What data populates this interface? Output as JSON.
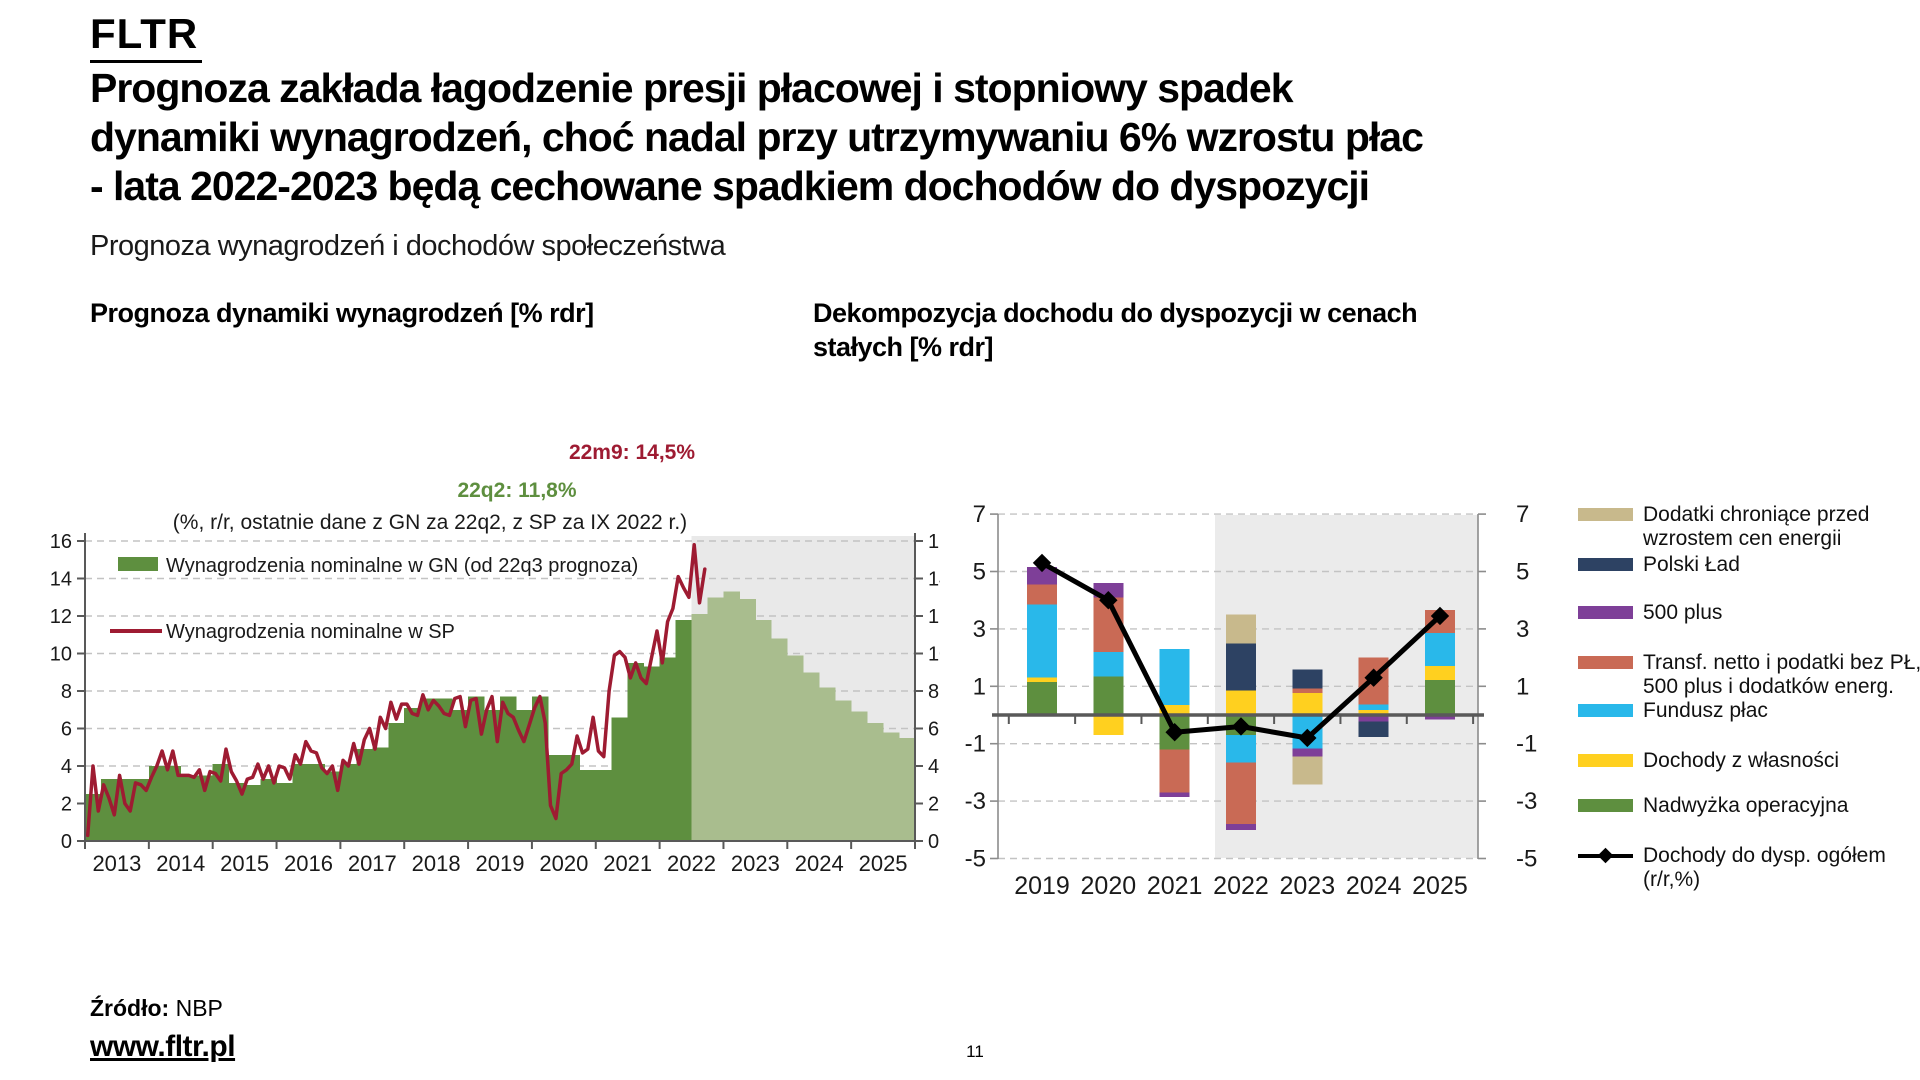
{
  "page": {
    "logo": "FLTR",
    "heading_lines": [
      "Prognoza zakłada łagodzenie presji płacowej i stopniowy spadek",
      "dynamiki wynagrodzeń, choć nadal przy utrzymywaniu 6% wzrostu płac",
      "- lata 2022-2023 będą cechowane spadkiem dochodów do dyspozycji"
    ],
    "subtitle": "Prognoza wynagrodzeń i dochodów społeczeństwa",
    "source_label": "Źródło:",
    "source_value": "NBP",
    "website": "www.fltr.pl",
    "page_number": "11"
  },
  "chart_data": [
    {
      "id": "wages-forecast",
      "type": "bar",
      "title": "Prognoza dynamiki wynagrodzeń [% rdr]",
      "annotation": "(%, r/r, ostatnie dane z GN za 22q2, z SP za IX 2022 r.)",
      "legend": [
        {
          "label": "Wynagrodzenia nominalne w GN (od 22q3 prognoza)",
          "type": "box",
          "color": "#5e8f3f"
        },
        {
          "label": "Wynagrodzenia nominalne w SP",
          "type": "line",
          "color": "#9e1b32"
        }
      ],
      "callouts": [
        {
          "text": "22q2: 11,8%",
          "color": "#5e8f3f"
        },
        {
          "text": "22m9: 14,5%",
          "color": "#9e1b32"
        }
      ],
      "ylim": [
        0,
        16
      ],
      "yticks": [
        0,
        2,
        4,
        6,
        8,
        10,
        12,
        14,
        16
      ],
      "x_years": [
        "2013",
        "2014",
        "2015",
        "2016",
        "2017",
        "2018",
        "2019",
        "2020",
        "2021",
        "2022",
        "2023",
        "2024",
        "2025"
      ],
      "bars_actual_quarterly_gn": [
        2.5,
        3.3,
        3.3,
        3.3,
        4.0,
        4.0,
        3.5,
        3.5,
        4.1,
        3.1,
        3.0,
        3.3,
        3.1,
        4.1,
        4.1,
        3.7,
        4.1,
        4.9,
        5.0,
        6.3,
        7.1,
        7.6,
        7.6,
        7.0,
        7.7,
        7.0,
        7.7,
        7.0,
        7.7,
        4.6,
        4.6,
        3.8,
        3.8,
        6.6,
        9.5,
        9.3,
        9.8,
        11.8
      ],
      "bars_forecast_quarterly_gn": [
        12.1,
        13.0,
        13.3,
        12.9,
        11.8,
        10.8,
        9.9,
        9.0,
        8.2,
        7.5,
        6.9,
        6.3,
        5.8,
        5.5
      ],
      "line_monthly_sp": [
        0.3,
        4.0,
        1.6,
        3.0,
        2.3,
        1.4,
        3.5,
        2.0,
        1.6,
        3.1,
        3.0,
        2.7,
        3.4,
        4.0,
        4.8,
        3.8,
        4.8,
        3.5,
        3.5,
        3.5,
        3.4,
        3.8,
        2.7,
        3.7,
        3.6,
        3.2,
        4.9,
        3.7,
        3.2,
        2.5,
        3.3,
        3.4,
        4.1,
        3.3,
        4.0,
        3.1,
        4.0,
        3.9,
        3.3,
        4.6,
        4.1,
        5.3,
        4.8,
        4.7,
        3.9,
        3.6,
        4.0,
        2.7,
        4.3,
        4.0,
        5.2,
        4.1,
        5.4,
        6.0,
        4.9,
        6.6,
        6.0,
        7.4,
        6.5,
        7.3,
        7.3,
        6.8,
        6.7,
        7.8,
        7.0,
        7.5,
        7.2,
        6.8,
        6.7,
        7.6,
        7.7,
        6.1,
        7.5,
        7.6,
        5.7,
        7.0,
        7.7,
        5.3,
        7.4,
        6.8,
        6.6,
        5.9,
        5.3,
        6.2,
        7.1,
        7.7,
        6.3,
        1.9,
        1.2,
        3.6,
        3.8,
        4.1,
        5.6,
        4.7,
        4.9,
        6.6,
        4.8,
        4.5,
        8.0,
        9.9,
        10.1,
        9.8,
        8.7,
        9.5,
        8.7,
        8.4,
        9.8,
        11.2,
        9.5,
        11.7,
        12.4,
        14.1,
        13.5,
        13.0,
        15.8,
        12.7,
        14.5
      ],
      "colors": {
        "bar_actual": "#5e8f3f",
        "bar_forecast": "#a9bd8e",
        "forecast_band": "#e9e9e9",
        "line": "#9e1b32"
      }
    },
    {
      "id": "income-decomposition",
      "type": "stacked-bar-line",
      "title": "Dekompozycja dochodu do dyspozycji w cenach stałych [% rdr]",
      "categories": [
        "2019",
        "2020",
        "2021",
        "2022",
        "2023",
        "2024",
        "2025"
      ],
      "ylim": [
        -5,
        7
      ],
      "yticks": [
        7,
        5,
        3,
        1,
        -1,
        -3,
        -5
      ],
      "forecast_from": "2022",
      "series": [
        {
          "name": "Nadwyżka operacyjna",
          "color": "#5e8f3f",
          "values": [
            1.15,
            1.35,
            -1.2,
            -0.7,
            0.06,
            0.05,
            1.22
          ]
        },
        {
          "name": "Dochody z własności",
          "color": "#ffd01f",
          "values": [
            0.15,
            -0.7,
            0.35,
            0.85,
            0.7,
            0.13,
            0.49
          ]
        },
        {
          "name": "Fundusz płac",
          "color": "#29b8ea",
          "values": [
            2.55,
            0.85,
            1.95,
            -0.95,
            -1.16,
            0.18,
            1.14
          ]
        },
        {
          "name": "Transf. netto i podatki bez PŁ, 500 plus i dodatków energ.",
          "color": "#c96a55",
          "values": [
            0.7,
            1.9,
            -1.5,
            -2.15,
            0.17,
            1.65,
            0.81
          ]
        },
        {
          "name": "500 plus",
          "color": "#7e3f98",
          "values": [
            0.6,
            0.5,
            -0.15,
            -0.2,
            -0.29,
            -0.23,
            -0.15
          ]
        },
        {
          "name": "Polski Ład",
          "color": "#2d4263",
          "values": [
            0,
            0,
            0,
            1.65,
            0.66,
            -0.53,
            0
          ]
        },
        {
          "name": "Dodatki chroniące przed wzrostem cen energii",
          "color": "#c8b98c",
          "values": [
            0,
            0,
            0,
            1.0,
            -0.97,
            0,
            0
          ]
        }
      ],
      "line": {
        "name": "Dochody do dysp. ogółem (r/r,%)",
        "color": "#000000",
        "values": [
          5.3,
          4.0,
          -0.6,
          -0.4,
          -0.8,
          1.3,
          3.45
        ]
      },
      "legend": [
        {
          "lines": [
            "Dodatki chroniące przed",
            "wzrostem cen energii"
          ],
          "type": "box",
          "color": "#c8b98c"
        },
        {
          "lines": [
            "Polski Ład"
          ],
          "type": "box",
          "color": "#2d4263"
        },
        {
          "lines": [
            "500 plus"
          ],
          "type": "box",
          "color": "#7e3f98"
        },
        {
          "lines": [
            "Transf. netto i podatki bez PŁ,",
            "500 plus i dodatków energ."
          ],
          "type": "box",
          "color": "#c96a55"
        },
        {
          "lines": [
            "Fundusz płac"
          ],
          "type": "box",
          "color": "#29b8ea"
        },
        {
          "lines": [
            "Dochody z własności"
          ],
          "type": "box",
          "color": "#ffd01f"
        },
        {
          "lines": [
            "Nadwyżka operacyjna"
          ],
          "type": "box",
          "color": "#5e8f3f"
        },
        {
          "lines": [
            "Dochody do dysp. ogółem",
            "(r/r,%)"
          ],
          "type": "line",
          "color": "#000000"
        }
      ],
      "colors": {
        "forecast_band": "#ebebeb",
        "axis": "#595959",
        "grid": "#c3c3c3"
      }
    }
  ]
}
